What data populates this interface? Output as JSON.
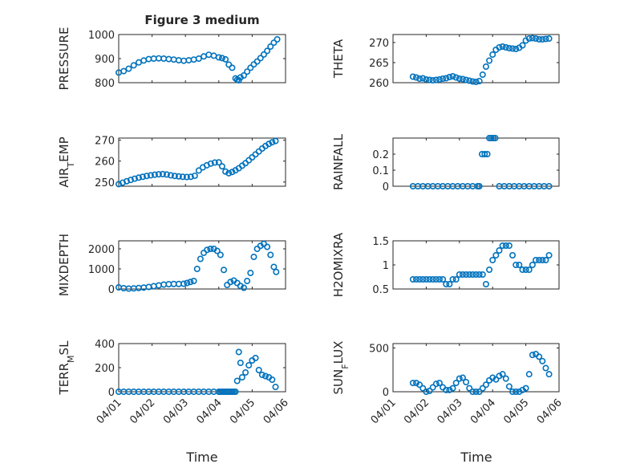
{
  "figure": {
    "title": "Figure 3 medium",
    "xlabel": "Time"
  },
  "colors": {
    "series": "#0072BD",
    "axis": "#262626",
    "grid": "#d3d3d3"
  },
  "chart_data": [
    {
      "type": "scatter",
      "ylabel": "PRESSURE",
      "ylim": [
        800,
        1000
      ],
      "yticks": [
        800,
        900,
        1000
      ],
      "ytick_labels": [
        "800",
        "900",
        "1000"
      ],
      "xlim": [
        0,
        5
      ],
      "xtick_labels": [],
      "grid": true,
      "marker": "circle",
      "x": [
        0.0,
        0.15,
        0.3,
        0.45,
        0.6,
        0.75,
        0.9,
        1.05,
        1.2,
        1.35,
        1.5,
        1.65,
        1.8,
        1.95,
        2.1,
        2.25,
        2.4,
        2.55,
        2.7,
        2.85,
        3.0,
        3.1,
        3.2,
        3.3,
        3.4,
        3.5,
        3.55,
        3.6,
        3.65,
        3.75,
        3.85,
        3.95,
        4.05,
        4.15,
        4.25,
        4.35,
        4.45,
        4.55,
        4.65,
        4.75
      ],
      "y": [
        842,
        848,
        858,
        872,
        884,
        892,
        898,
        900,
        901,
        900,
        898,
        896,
        893,
        891,
        893,
        896,
        900,
        909,
        916,
        912,
        905,
        902,
        897,
        875,
        862,
        818,
        812,
        810,
        822,
        830,
        846,
        862,
        876,
        888,
        902,
        917,
        932,
        950,
        966,
        980
      ]
    },
    {
      "type": "scatter",
      "ylabel": "THETA",
      "ylim": [
        260,
        272
      ],
      "yticks": [
        260,
        265,
        270
      ],
      "ytick_labels": [
        "260",
        "265",
        "270"
      ],
      "xlim": [
        0,
        5
      ],
      "xtick_labels": [],
      "grid": true,
      "marker": "circle",
      "x": [
        0.6,
        0.7,
        0.8,
        0.9,
        1.0,
        1.1,
        1.2,
        1.3,
        1.4,
        1.5,
        1.6,
        1.7,
        1.8,
        1.9,
        2.0,
        2.1,
        2.2,
        2.3,
        2.4,
        2.5,
        2.6,
        2.7,
        2.8,
        2.9,
        3.0,
        3.1,
        3.2,
        3.3,
        3.4,
        3.5,
        3.6,
        3.7,
        3.8,
        3.9,
        4.0,
        4.1,
        4.2,
        4.3,
        4.4,
        4.5,
        4.6,
        4.7
      ],
      "y": [
        261.5,
        261.3,
        261.0,
        261.1,
        260.8,
        260.7,
        260.6,
        260.7,
        260.8,
        261.0,
        261.1,
        261.4,
        261.6,
        261.3,
        261.0,
        260.9,
        260.7,
        260.5,
        260.3,
        260.2,
        260.4,
        262.0,
        264.0,
        265.5,
        267.0,
        268.2,
        268.8,
        269.0,
        268.8,
        268.6,
        268.5,
        268.4,
        268.7,
        269.3,
        270.5,
        271.0,
        271.1,
        271.0,
        270.8,
        270.8,
        270.9,
        271.0
      ]
    },
    {
      "type": "scatter",
      "ylabel": "AIR_TEMP",
      "ylim": [
        248,
        271
      ],
      "yticks": [
        250,
        260,
        270
      ],
      "ytick_labels": [
        "250",
        "260",
        "270"
      ],
      "xlim": [
        0,
        5
      ],
      "xtick_labels": [],
      "grid": true,
      "marker": "circle",
      "x": [
        0.0,
        0.12,
        0.24,
        0.36,
        0.48,
        0.6,
        0.72,
        0.84,
        0.96,
        1.08,
        1.2,
        1.32,
        1.44,
        1.56,
        1.68,
        1.8,
        1.92,
        2.04,
        2.16,
        2.28,
        2.4,
        2.52,
        2.64,
        2.76,
        2.88,
        3.0,
        3.1,
        3.2,
        3.3,
        3.4,
        3.5,
        3.6,
        3.7,
        3.8,
        3.9,
        4.0,
        4.1,
        4.2,
        4.3,
        4.4,
        4.5,
        4.6,
        4.7
      ],
      "y": [
        249.0,
        249.7,
        250.4,
        251.0,
        251.6,
        252.1,
        252.5,
        252.9,
        253.2,
        253.5,
        253.7,
        253.8,
        253.6,
        253.2,
        252.9,
        252.7,
        252.5,
        252.4,
        252.5,
        253.0,
        255.5,
        257.0,
        258.0,
        258.8,
        259.3,
        259.4,
        257.5,
        255.0,
        254.2,
        254.8,
        255.6,
        256.6,
        257.8,
        259.0,
        260.4,
        261.8,
        263.2,
        264.6,
        266.0,
        267.2,
        268.2,
        269.0,
        269.6
      ]
    },
    {
      "type": "scatter",
      "ylabel": "RAINFALL",
      "ylim": [
        0,
        0.3
      ],
      "yticks": [
        0,
        0.1,
        0.2
      ],
      "ytick_labels": [
        "0",
        "0.1",
        "0.2"
      ],
      "xlim": [
        0,
        5
      ],
      "xtick_labels": [],
      "grid": true,
      "marker": "circle",
      "x": [
        0.6,
        0.75,
        0.9,
        1.05,
        1.2,
        1.35,
        1.5,
        1.65,
        1.8,
        1.95,
        2.1,
        2.25,
        2.4,
        2.55,
        2.6,
        2.68,
        2.76,
        2.84,
        2.9,
        2.96,
        3.02,
        3.08,
        3.2,
        3.35,
        3.5,
        3.65,
        3.8,
        3.95,
        4.1,
        4.25,
        4.4,
        4.55,
        4.7
      ],
      "y": [
        0,
        0,
        0,
        0,
        0,
        0,
        0,
        0,
        0,
        0,
        0,
        0,
        0,
        0,
        0,
        0.2,
        0.2,
        0.2,
        0.3,
        0.3,
        0.3,
        0.3,
        0,
        0,
        0,
        0,
        0,
        0,
        0,
        0,
        0,
        0,
        0
      ]
    },
    {
      "type": "scatter",
      "ylabel": "MIXDEPTH",
      "ylim": [
        0,
        2400
      ],
      "yticks": [
        0,
        1000,
        2000
      ],
      "ytick_labels": [
        "0",
        "1000",
        "2000"
      ],
      "xlim": [
        0,
        5
      ],
      "xtick_labels": [],
      "grid": true,
      "marker": "circle",
      "x": [
        0.0,
        0.15,
        0.3,
        0.45,
        0.6,
        0.75,
        0.9,
        1.05,
        1.2,
        1.35,
        1.5,
        1.65,
        1.8,
        1.95,
        2.05,
        2.15,
        2.25,
        2.35,
        2.45,
        2.55,
        2.65,
        2.75,
        2.85,
        2.95,
        3.05,
        3.15,
        3.25,
        3.35,
        3.45,
        3.55,
        3.65,
        3.75,
        3.85,
        3.95,
        4.05,
        4.15,
        4.25,
        4.35,
        4.45,
        4.55,
        4.65,
        4.72
      ],
      "y": [
        80,
        40,
        20,
        30,
        50,
        70,
        100,
        140,
        180,
        220,
        240,
        250,
        250,
        260,
        300,
        350,
        400,
        1000,
        1500,
        1800,
        1950,
        2000,
        2000,
        1900,
        1700,
        950,
        200,
        350,
        420,
        300,
        150,
        60,
        400,
        800,
        1600,
        2000,
        2150,
        2250,
        2100,
        1700,
        1100,
        850
      ]
    },
    {
      "type": "scatter",
      "ylabel": "H2OMIXRA",
      "ylim": [
        0.5,
        1.5
      ],
      "yticks": [
        0.5,
        1,
        1.5
      ],
      "ytick_labels": [
        "0.5",
        "1",
        "1.5"
      ],
      "xlim": [
        0,
        5
      ],
      "xtick_labels": [],
      "grid": true,
      "marker": "circle",
      "x": [
        0.6,
        0.7,
        0.8,
        0.9,
        1.0,
        1.1,
        1.2,
        1.3,
        1.4,
        1.5,
        1.6,
        1.7,
        1.8,
        1.9,
        2.0,
        2.1,
        2.2,
        2.3,
        2.4,
        2.5,
        2.6,
        2.7,
        2.8,
        2.9,
        3.0,
        3.1,
        3.2,
        3.3,
        3.4,
        3.5,
        3.6,
        3.7,
        3.8,
        3.9,
        4.0,
        4.1,
        4.2,
        4.3,
        4.4,
        4.5,
        4.6,
        4.7
      ],
      "y": [
        0.7,
        0.7,
        0.7,
        0.7,
        0.7,
        0.7,
        0.7,
        0.7,
        0.7,
        0.7,
        0.6,
        0.6,
        0.7,
        0.7,
        0.8,
        0.8,
        0.8,
        0.8,
        0.8,
        0.8,
        0.8,
        0.8,
        0.6,
        0.9,
        1.1,
        1.2,
        1.3,
        1.4,
        1.4,
        1.4,
        1.2,
        1.0,
        1.0,
        0.9,
        0.9,
        0.9,
        1.0,
        1.1,
        1.1,
        1.1,
        1.1,
        1.2
      ]
    },
    {
      "type": "scatter",
      "ylabel": "TERR_MSL",
      "ylim": [
        0,
        400
      ],
      "yticks": [
        0,
        200,
        400
      ],
      "ytick_labels": [
        "0",
        "200",
        "400"
      ],
      "xlim": [
        0,
        5
      ],
      "xtick_labels": [
        "04/01",
        "04/02",
        "04/03",
        "04/04",
        "04/05",
        "04/06"
      ],
      "grid": true,
      "marker": "circle",
      "x": [
        0.0,
        0.15,
        0.3,
        0.45,
        0.6,
        0.75,
        0.9,
        1.05,
        1.2,
        1.35,
        1.5,
        1.65,
        1.8,
        1.95,
        2.1,
        2.25,
        2.4,
        2.55,
        2.7,
        2.85,
        3.0,
        3.05,
        3.1,
        3.15,
        3.2,
        3.25,
        3.3,
        3.35,
        3.4,
        3.45,
        3.5,
        3.55,
        3.6,
        3.65,
        3.7,
        3.8,
        3.9,
        4.0,
        4.1,
        4.2,
        4.3,
        4.4,
        4.5,
        4.6,
        4.7
      ],
      "y": [
        0,
        0,
        0,
        0,
        0,
        0,
        0,
        0,
        0,
        0,
        0,
        0,
        0,
        0,
        0,
        0,
        0,
        0,
        0,
        0,
        0,
        0,
        0,
        0,
        0,
        0,
        0,
        0,
        0,
        0,
        0,
        90,
        330,
        240,
        120,
        160,
        220,
        260,
        280,
        180,
        140,
        130,
        120,
        100,
        40
      ]
    },
    {
      "type": "scatter",
      "ylabel": "SUN_FLUX",
      "ylim": [
        0,
        550
      ],
      "yticks": [
        0,
        500
      ],
      "ytick_labels": [
        "0",
        "500"
      ],
      "xlim": [
        0,
        5
      ],
      "xtick_labels": [
        "04/01",
        "04/02",
        "04/03",
        "04/04",
        "04/05",
        "04/06"
      ],
      "grid": true,
      "marker": "circle",
      "x": [
        0.6,
        0.7,
        0.8,
        0.9,
        1.0,
        1.1,
        1.2,
        1.3,
        1.4,
        1.5,
        1.6,
        1.7,
        1.8,
        1.9,
        2.0,
        2.1,
        2.2,
        2.3,
        2.4,
        2.5,
        2.6,
        2.7,
        2.8,
        2.9,
        3.0,
        3.1,
        3.2,
        3.3,
        3.4,
        3.5,
        3.6,
        3.7,
        3.8,
        3.9,
        4.0,
        4.1,
        4.2,
        4.3,
        4.4,
        4.5,
        4.6,
        4.7
      ],
      "y": [
        100,
        100,
        80,
        40,
        0,
        10,
        50,
        90,
        100,
        50,
        20,
        20,
        40,
        100,
        150,
        160,
        110,
        40,
        0,
        0,
        0,
        40,
        80,
        130,
        160,
        140,
        180,
        200,
        150,
        60,
        0,
        0,
        0,
        20,
        40,
        200,
        420,
        430,
        400,
        350,
        270,
        200
      ]
    }
  ]
}
